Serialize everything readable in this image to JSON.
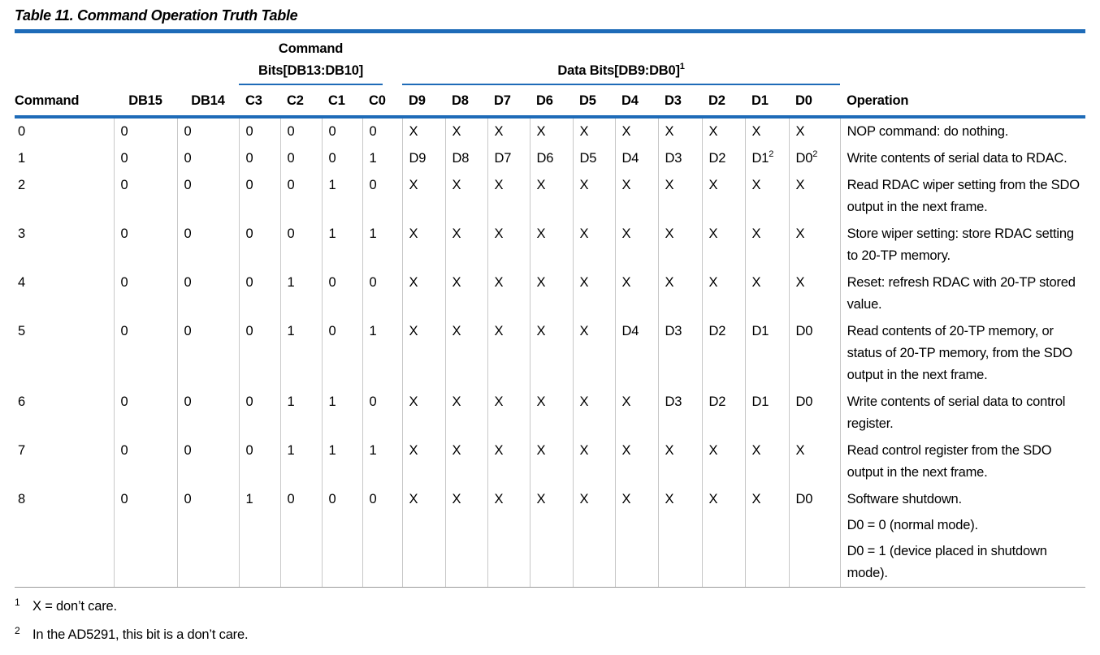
{
  "header": {
    "title": "Table 11. Command Operation Truth Table"
  },
  "table": {
    "groups": [
      {
        "label": "Command Bits[DB13:DB10]"
      },
      {
        "label": "Data Bits[DB9:DB0]",
        "note": "1"
      }
    ],
    "columns": [
      "Command",
      "DB15",
      "DB14",
      "C3",
      "C2",
      "C1",
      "C0",
      "D9",
      "D8",
      "D7",
      "D6",
      "D5",
      "D4",
      "D3",
      "D2",
      "D1",
      "D0",
      "Operation"
    ],
    "rows": [
      {
        "cells": [
          "0",
          "0",
          "0",
          "0",
          "0",
          "0",
          "0",
          "X",
          "X",
          "X",
          "X",
          "X",
          "X",
          "X",
          "X",
          "X",
          "X"
        ],
        "operation": [
          "NOP command: do nothing."
        ]
      },
      {
        "cells": [
          "1",
          "0",
          "0",
          "0",
          "0",
          "0",
          "1",
          "D9",
          "D8",
          "D7",
          "D6",
          "D5",
          "D4",
          "D3",
          "D2",
          {
            "text": "D1",
            "note": "2"
          },
          {
            "text": "D0",
            "note": "2"
          }
        ],
        "operation": [
          "Write contents of serial data to RDAC."
        ]
      },
      {
        "cells": [
          "2",
          "0",
          "0",
          "0",
          "0",
          "1",
          "0",
          "X",
          "X",
          "X",
          "X",
          "X",
          "X",
          "X",
          "X",
          "X",
          "X"
        ],
        "operation": [
          "Read RDAC wiper setting from the SDO output in the next frame."
        ]
      },
      {
        "cells": [
          "3",
          "0",
          "0",
          "0",
          "0",
          "1",
          "1",
          "X",
          "X",
          "X",
          "X",
          "X",
          "X",
          "X",
          "X",
          "X",
          "X"
        ],
        "operation": [
          "Store wiper setting: store RDAC setting to 20-TP memory."
        ]
      },
      {
        "cells": [
          "4",
          "0",
          "0",
          "0",
          "1",
          "0",
          "0",
          "X",
          "X",
          "X",
          "X",
          "X",
          "X",
          "X",
          "X",
          "X",
          "X"
        ],
        "operation": [
          "Reset: refresh RDAC with 20-TP stored value."
        ]
      },
      {
        "cells": [
          "5",
          "0",
          "0",
          "0",
          "1",
          "0",
          "1",
          "X",
          "X",
          "X",
          "X",
          "X",
          "D4",
          "D3",
          "D2",
          "D1",
          "D0"
        ],
        "operation": [
          "Read contents of 20-TP memory, or status of 20-TP memory, from the SDO output in the next frame."
        ]
      },
      {
        "cells": [
          "6",
          "0",
          "0",
          "0",
          "1",
          "1",
          "0",
          "X",
          "X",
          "X",
          "X",
          "X",
          "X",
          "D3",
          "D2",
          "D1",
          "D0"
        ],
        "operation": [
          "Write contents of serial data to control register."
        ]
      },
      {
        "cells": [
          "7",
          "0",
          "0",
          "0",
          "1",
          "1",
          "1",
          "X",
          "X",
          "X",
          "X",
          "X",
          "X",
          "X",
          "X",
          "X",
          "X"
        ],
        "operation": [
          "Read control register from the SDO output in the next frame."
        ]
      },
      {
        "cells": [
          "8",
          "0",
          "0",
          "1",
          "0",
          "0",
          "0",
          "X",
          "X",
          "X",
          "X",
          "X",
          "X",
          "X",
          "X",
          "X",
          "D0"
        ],
        "operation": [
          "Software shutdown.",
          "D0 = 0 (normal mode).",
          "D0 = 1 (device placed in shutdown mode)."
        ]
      }
    ]
  },
  "footnotes": [
    {
      "mark": "1",
      "text": "X = don’t care."
    },
    {
      "mark": "2",
      "text": "In the AD5291, this bit is a don’t care."
    }
  ]
}
